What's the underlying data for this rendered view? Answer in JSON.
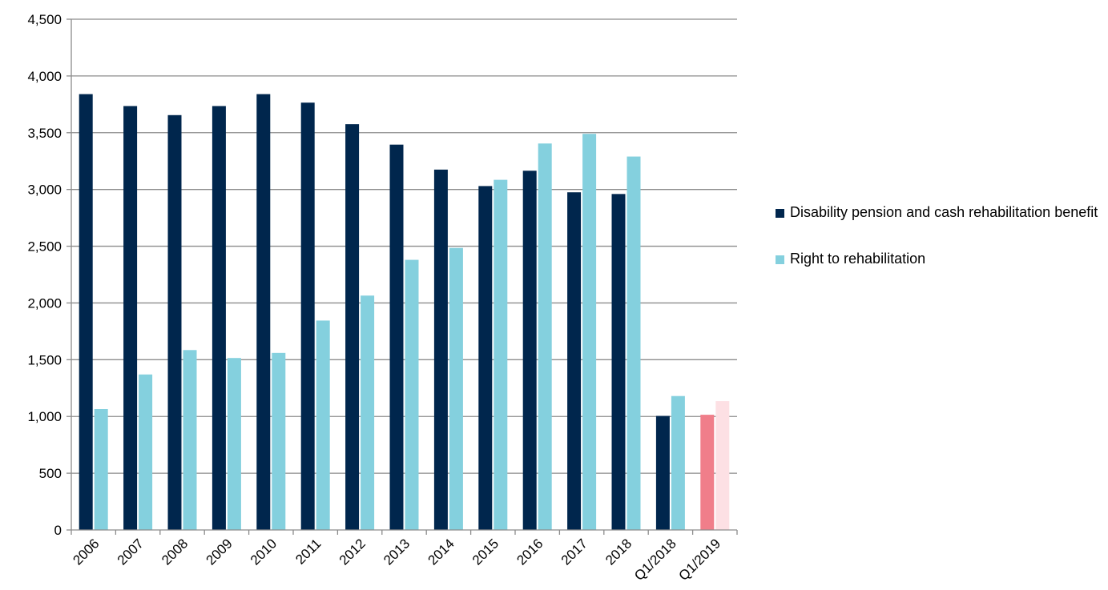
{
  "chart_data": {
    "type": "bar",
    "categories": [
      "2006",
      "2007",
      "2008",
      "2009",
      "2010",
      "2011",
      "2012",
      "2013",
      "2014",
      "2015",
      "2016",
      "2017",
      "2018",
      "Q1/2018",
      "Q1/2019"
    ],
    "series": [
      {
        "name": "Disability pension and cash rehabilitation benefit",
        "color": "#00264d",
        "values": [
          3840,
          3735,
          3655,
          3735,
          3840,
          3765,
          3575,
          3395,
          3175,
          3030,
          3165,
          2975,
          2960,
          1005,
          1015
        ]
      },
      {
        "name": "Right to rehabilitation",
        "color": "#84d0de",
        "values": [
          1065,
          1370,
          1585,
          1515,
          1560,
          1845,
          2065,
          2380,
          2485,
          3085,
          3405,
          3490,
          3290,
          1180,
          1135
        ]
      }
    ],
    "highlight": {
      "category": "Q1/2019",
      "colors": [
        "#f07e8a",
        "#fde0e4"
      ]
    },
    "ylim": [
      0,
      4500
    ],
    "yticks": [
      "0",
      "500",
      "1,000",
      "1,500",
      "2,000",
      "2,500",
      "3,000",
      "3,500",
      "4,000",
      "4,500"
    ],
    "grid": true,
    "legend_position": "right",
    "title": "",
    "xlabel": "",
    "ylabel": ""
  }
}
